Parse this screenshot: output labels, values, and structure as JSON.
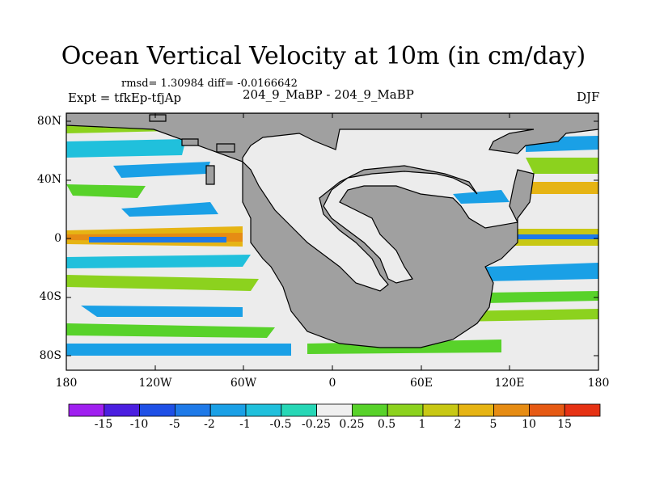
{
  "title": "Ocean Vertical Velocity at 10m (in cm/day)",
  "stats": "rmsd= 1.30984 diff= -0.0166642",
  "left_label": "Expt = tfkEp-tfjAp",
  "center_label": "204_9_MaBP - 204_9_MaBP",
  "right_label": "DJF",
  "x_ticks": [
    "180",
    "120W",
    "60W",
    "0",
    "60E",
    "120E",
    "180"
  ],
  "y_ticks": [
    "80N",
    "40N",
    "0",
    "40S",
    "80S"
  ],
  "colorbar": {
    "labels": [
      "-15",
      "-10",
      "-5",
      "-2",
      "-1",
      "-0.5",
      "-0.25",
      "0.25",
      "0.5",
      "1",
      "2",
      "5",
      "10",
      "15"
    ],
    "colors": [
      "#a020f0",
      "#4b1fe0",
      "#1f50e6",
      "#1f7ae8",
      "#1aa0e6",
      "#20c0dc",
      "#27d7b6",
      "#f0f0f0",
      "#58d22a",
      "#8cd21e",
      "#c8c814",
      "#e6b414",
      "#e68c14",
      "#e65a14",
      "#e63214"
    ]
  },
  "colors": {
    "land": "#a0a0a0",
    "ocean_background": "#ececec",
    "coast": "#000000"
  }
}
